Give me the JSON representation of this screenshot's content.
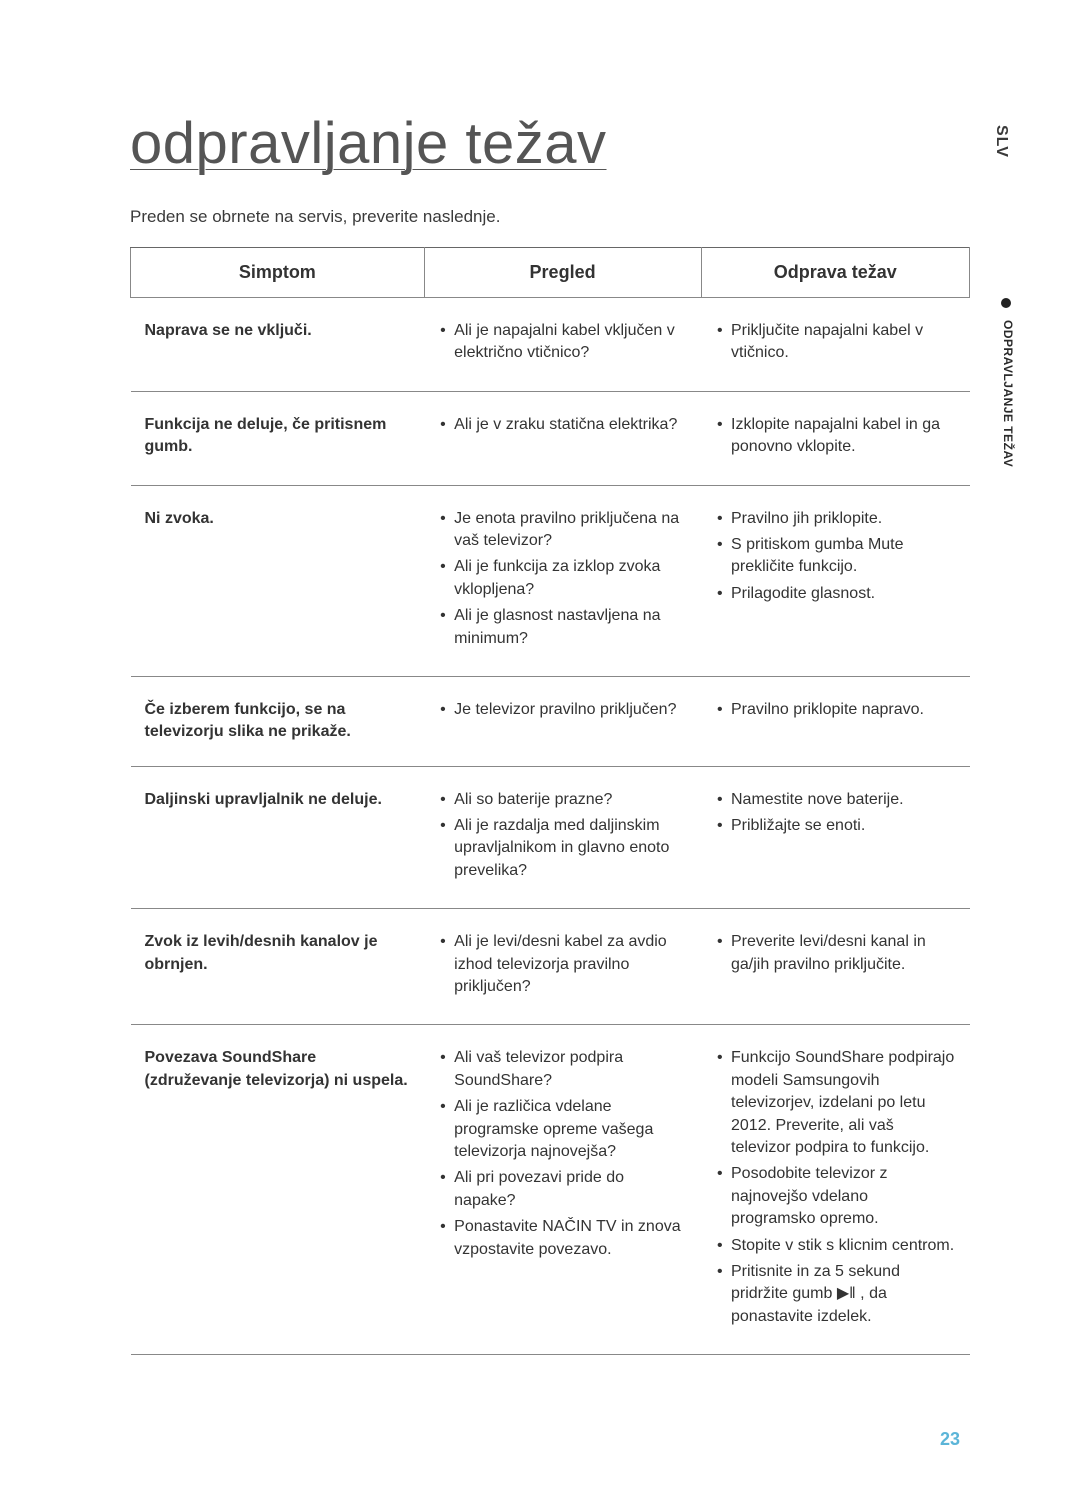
{
  "page": {
    "title": "odpravljanje težav",
    "intro": "Preden se obrnete na servis, preverite naslednje.",
    "side_lang": "SLV",
    "side_section": "ODPRAVLJANJE TEŽAV",
    "page_number": "23"
  },
  "table": {
    "headers": [
      "Simptom",
      "Pregled",
      "Odprava težav"
    ],
    "rows": [
      {
        "symptom": "Naprava se ne vključi.",
        "checks": [
          "Ali je napajalni kabel vključen v električno vtičnico?"
        ],
        "remedies": [
          "Priključite napajalni kabel v vtičnico."
        ]
      },
      {
        "symptom": "Funkcija ne deluje, če pritisnem gumb.",
        "checks": [
          "Ali je v zraku statična elektrika?"
        ],
        "remedies": [
          "Izklopite napajalni kabel in ga ponovno vklopite."
        ]
      },
      {
        "symptom": "Ni zvoka.",
        "checks": [
          "Je enota pravilno priključena na vaš televizor?",
          "Ali je funkcija za izklop zvoka vklopljena?",
          "Ali je glasnost nastavljena na minimum?"
        ],
        "remedies": [
          "Pravilno jih priklopite.",
          "S pritiskom gumba Mute prekličite funkcijo.",
          "Prilagodite glasnost."
        ]
      },
      {
        "symptom": "Če izberem funkcijo, se na televizorju slika ne prikaže.",
        "checks": [
          "Je televizor pravilno priključen?"
        ],
        "remedies": [
          "Pravilno priklopite napravo."
        ]
      },
      {
        "symptom": "Daljinski upravljalnik ne deluje.",
        "checks": [
          "Ali so baterije prazne?",
          "Ali je razdalja med daljinskim upravljalnikom in glavno enoto prevelika?"
        ],
        "remedies": [
          "Namestite nove baterije.",
          "Približajte se enoti."
        ]
      },
      {
        "symptom": "Zvok iz levih/desnih kanalov je obrnjen.",
        "checks": [
          "Ali je levi/desni kabel za avdio izhod televizorja pravilno priključen?"
        ],
        "remedies": [
          "Preverite levi/desni kanal in ga/jih pravilno priključite."
        ]
      },
      {
        "symptom": "Povezava SoundShare (združevanje televizorja) ni uspela.",
        "checks": [
          "Ali vaš televizor podpira SoundShare?",
          "Ali je različica vdelane programske opreme vašega televizorja najnovejša?",
          "Ali pri povezavi pride do napake?",
          "Ponastavite NAČIN TV in znova vzpostavite povezavo."
        ],
        "remedies": [
          "Funkcijo SoundShare podpirajo modeli Samsungovih televizorjev, izdelani po letu 2012. Preverite, ali vaš televizor podpira to funkcijo.",
          "Posodobite televizor z najnovejšo vdelano programsko opremo.",
          "Stopite v stik s klicnim centrom.",
          "Pritisnite in za 5 sekund pridržite gumb ▶ǁ , da ponastavite izdelek."
        ]
      }
    ]
  },
  "colors": {
    "text": "#2d2d2d",
    "title": "#555555",
    "border": "#888888",
    "page_accent": "#5bb5d8",
    "background": "#ffffff"
  }
}
